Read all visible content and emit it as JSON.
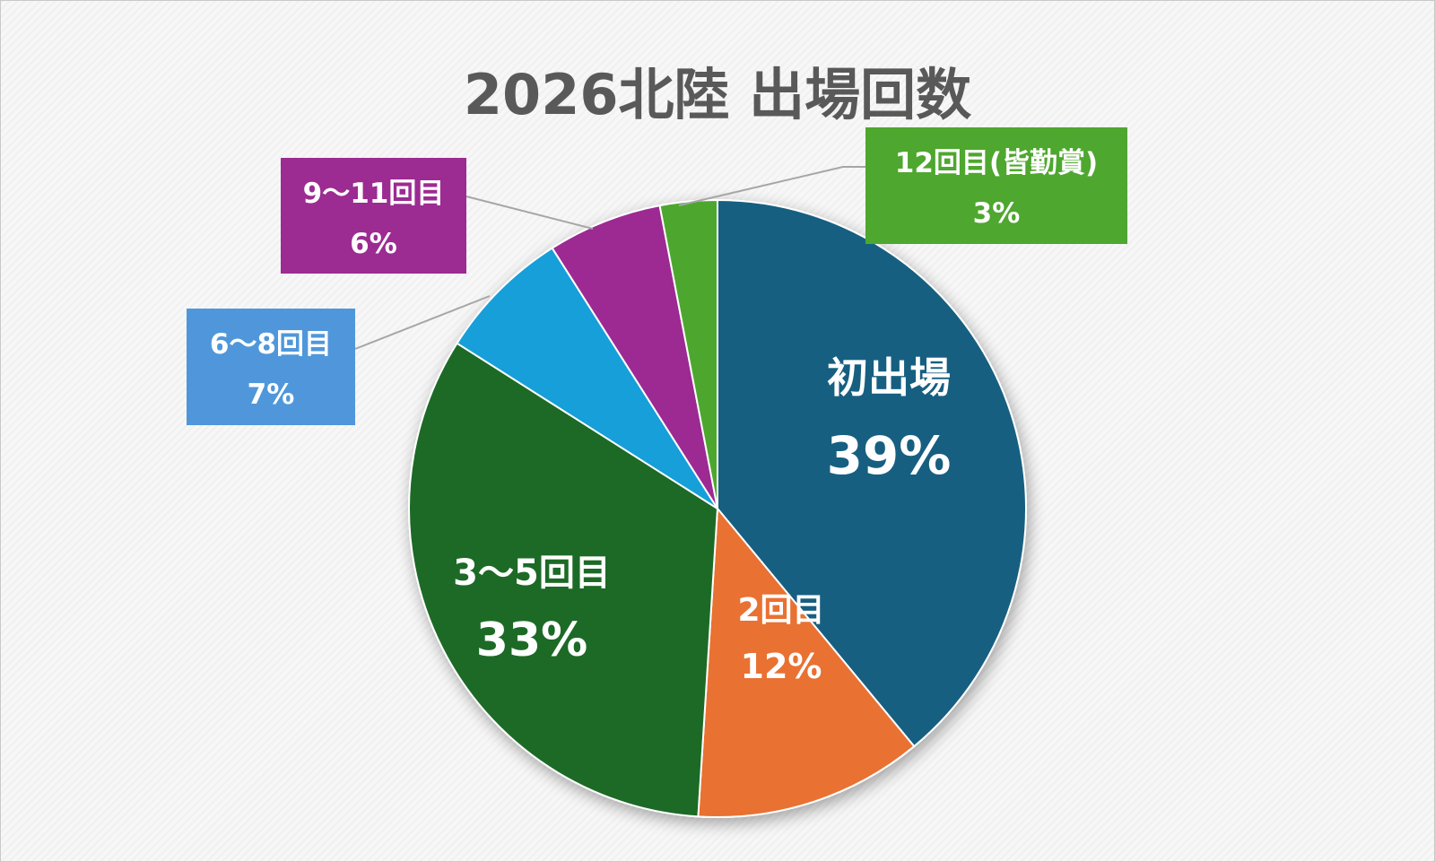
{
  "chart_data": {
    "type": "pie",
    "title": "2026北陸 出場回数",
    "start_angle_deg": 0,
    "direction": "clockwise",
    "slices": [
      {
        "label": "初出場",
        "value": 39,
        "value_label": "39%",
        "color": "#165e81"
      },
      {
        "label": "2回目",
        "value": 12,
        "value_label": "12%",
        "color": "#e97133"
      },
      {
        "label": "3〜5回目",
        "value": 33,
        "value_label": "33%",
        "color": "#1c6b25"
      },
      {
        "label": "6〜8回目",
        "value": 7,
        "value_label": "7%",
        "color": "#139fd9"
      },
      {
        "label": "9〜11回目",
        "value": 6,
        "value_label": "6%",
        "color": "#9c2b92"
      },
      {
        "label": "12回目(皆勤賞)",
        "value": 3,
        "value_label": "3%",
        "color": "#4ea72e"
      }
    ],
    "callout_colors": {
      "6〜8回目": "#4f97da",
      "9〜11回目": "#9c2b92",
      "12回目(皆勤賞)": "#4ea72e"
    },
    "title_color": "#595959",
    "leader_line_color": "#a6a6a6"
  }
}
